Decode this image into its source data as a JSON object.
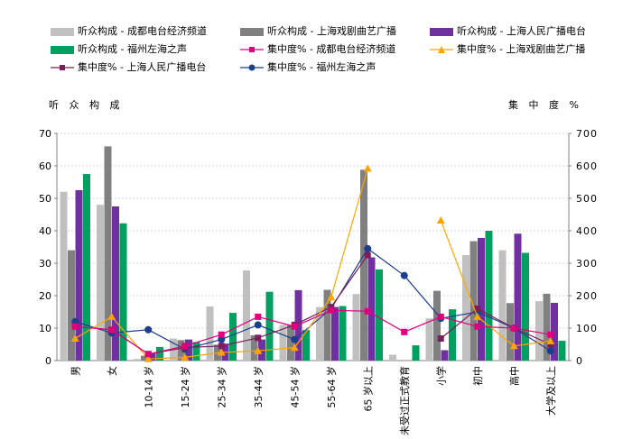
{
  "chart_data": {
    "type": "bar",
    "y_left_label": "听 众 构 成",
    "y_right_label": "集 中 度  %",
    "categories": [
      "男",
      "女",
      "10-14 岁",
      "15-24 岁",
      "25-34 岁",
      "35-44 岁",
      "45-54 岁",
      "55-64 岁",
      "65 岁以上",
      "未受过正式教育",
      "小学",
      "初中",
      "高中",
      "大学及以上"
    ],
    "y_left_ticks": [
      "0",
      "10",
      "20",
      "30",
      "40",
      "50",
      "60",
      "70"
    ],
    "y_right_ticks": [
      "0",
      "100",
      "200",
      "300",
      "400",
      "500",
      "600",
      "700"
    ],
    "y_left_range": [
      0,
      70
    ],
    "y_right_range": [
      0,
      700
    ],
    "grid": true,
    "bar_series": [
      {
        "name": "听众构成 - 成都电台经济频道",
        "color": "#c0c0c0",
        "values": [
          52,
          48,
          0.5,
          6.8,
          16.7,
          27.8,
          11,
          16.5,
          20.5,
          1.8,
          13,
          32.5,
          34,
          18.3
        ]
      },
      {
        "name": "听众构成 - 上海戏剧曲艺广播",
        "color": "#808080",
        "values": [
          34,
          66,
          1.5,
          6.3,
          4.9,
          7.8,
          11,
          21.8,
          58.8,
          0,
          21.5,
          36.8,
          17.7,
          20.6
        ]
      },
      {
        "name": "听众构成 - 上海人民广播电台",
        "color": "#7030a0",
        "values": [
          52.5,
          47.5,
          2.3,
          6.5,
          5.2,
          6.5,
          21.7,
          16.5,
          31.8,
          0,
          3.2,
          37.8,
          39.1,
          17.8
        ]
      },
      {
        "name": "听众构成 - 福州左海之声",
        "color": "#00a060",
        "values": [
          57.5,
          42.3,
          4.2,
          5.7,
          14.7,
          21.2,
          9.4,
          16.8,
          28.1,
          4.7,
          15.8,
          40,
          33.2,
          6.1
        ]
      }
    ],
    "line_series": [
      {
        "name": "集中度% - 成都电台经济频道",
        "color": "#e0007e",
        "marker": "square",
        "values": [
          105,
          95,
          20,
          45,
          80,
          135,
          105,
          155,
          152,
          88,
          135,
          105,
          100,
          80
        ]
      },
      {
        "name": "集中度% - 上海戏剧曲艺广播",
        "color": "#ffa500",
        "marker": "triangle",
        "values": [
          68,
          135,
          5,
          10,
          25,
          30,
          40,
          195,
          592,
          null,
          432,
          135,
          45,
          60
        ]
      },
      {
        "name": "集中度% - 上海人民广播电台",
        "color": "#7b1f5c",
        "marker": "square",
        "values": [
          105,
          95,
          20,
          40,
          45,
          70,
          110,
          165,
          325,
          null,
          68,
          160,
          100,
          50
        ]
      },
      {
        "name": "集中度% - 福州左海之声",
        "color": "#1a3f8c",
        "marker": "circle",
        "values": [
          120,
          85,
          95,
          35,
          65,
          110,
          65,
          160,
          345,
          262,
          130,
          150,
          100,
          30
        ]
      }
    ]
  }
}
